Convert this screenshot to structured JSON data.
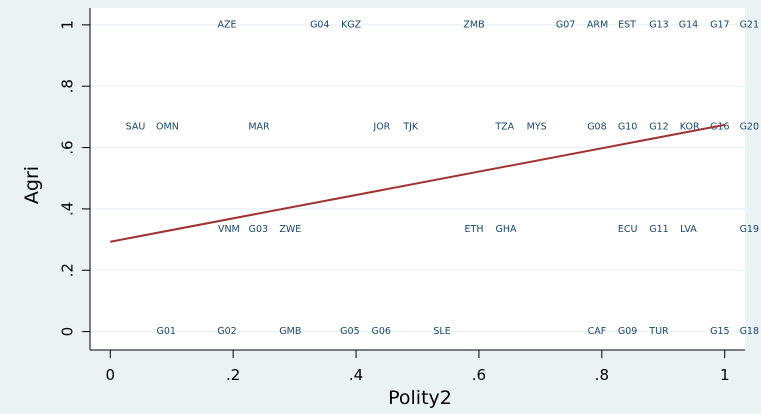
{
  "chart_data": {
    "type": "scatter",
    "xlabel": "Polity2",
    "ylabel": "Agri",
    "xlim": [
      -0.033,
      1.033
    ],
    "ylim": [
      -0.06,
      1.055
    ],
    "xticks": [
      0,
      {
        "value": 0.2,
        "label": ".2"
      },
      {
        "value": 0.4,
        "label": ".4"
      },
      {
        "value": 0.6,
        "label": ".6"
      },
      {
        "value": 0.8,
        "label": ".8"
      },
      1
    ],
    "yticks": [
      0,
      {
        "value": 0.2,
        "label": ".2"
      },
      {
        "value": 0.4,
        "label": ".4"
      },
      {
        "value": 0.6,
        "label": ".6"
      },
      {
        "value": 0.8,
        "label": ".8"
      },
      1
    ],
    "grid": true,
    "series": [
      {
        "type": "scatter",
        "color": "#1a476f",
        "labels": [
          "AZE",
          "G04",
          "KGZ",
          "ZMB",
          "G07",
          "ARM",
          "EST",
          "G13",
          "G14",
          "G17",
          "G21",
          "SAU",
          "OMN",
          "MAR",
          "JOR",
          "TJK",
          "TZA",
          "MYS",
          "G08",
          "G10",
          "G12",
          "KOR",
          "G16",
          "G20",
          "VNM",
          "G03",
          "ZWE",
          "ETH",
          "GHA",
          "ECU",
          "G11",
          "LVA",
          "G19",
          "G01",
          "G02",
          "GMB",
          "G05",
          "G06",
          "SLE",
          "CAF",
          "G09",
          "TUR",
          "G15",
          "G18"
        ],
        "x": [
          0.19,
          0.341,
          0.392,
          0.592,
          0.741,
          0.793,
          0.841,
          0.893,
          0.941,
          0.992,
          1.04,
          0.041,
          0.093,
          0.242,
          0.442,
          0.489,
          0.642,
          0.694,
          0.792,
          0.842,
          0.893,
          0.943,
          0.992,
          1.04,
          0.193,
          0.241,
          0.293,
          0.592,
          0.644,
          0.842,
          0.893,
          0.941,
          1.04,
          0.091,
          0.19,
          0.293,
          0.39,
          0.441,
          0.54,
          0.792,
          0.842,
          0.893,
          0.992,
          1.04
        ],
        "values": [
          1,
          1,
          1,
          1,
          1,
          1,
          1,
          1,
          1,
          1,
          1,
          0.667,
          0.667,
          0.667,
          0.667,
          0.667,
          0.667,
          0.667,
          0.667,
          0.667,
          0.667,
          0.667,
          0.667,
          0.667,
          0.333,
          0.333,
          0.333,
          0.333,
          0.333,
          0.333,
          0.333,
          0.333,
          0.333,
          0,
          0,
          0,
          0,
          0,
          0,
          0,
          0,
          0,
          0,
          0
        ]
      },
      {
        "type": "line",
        "color": "#a03232",
        "x": [
          0,
          1
        ],
        "values": [
          0.293,
          0.674
        ]
      }
    ]
  }
}
